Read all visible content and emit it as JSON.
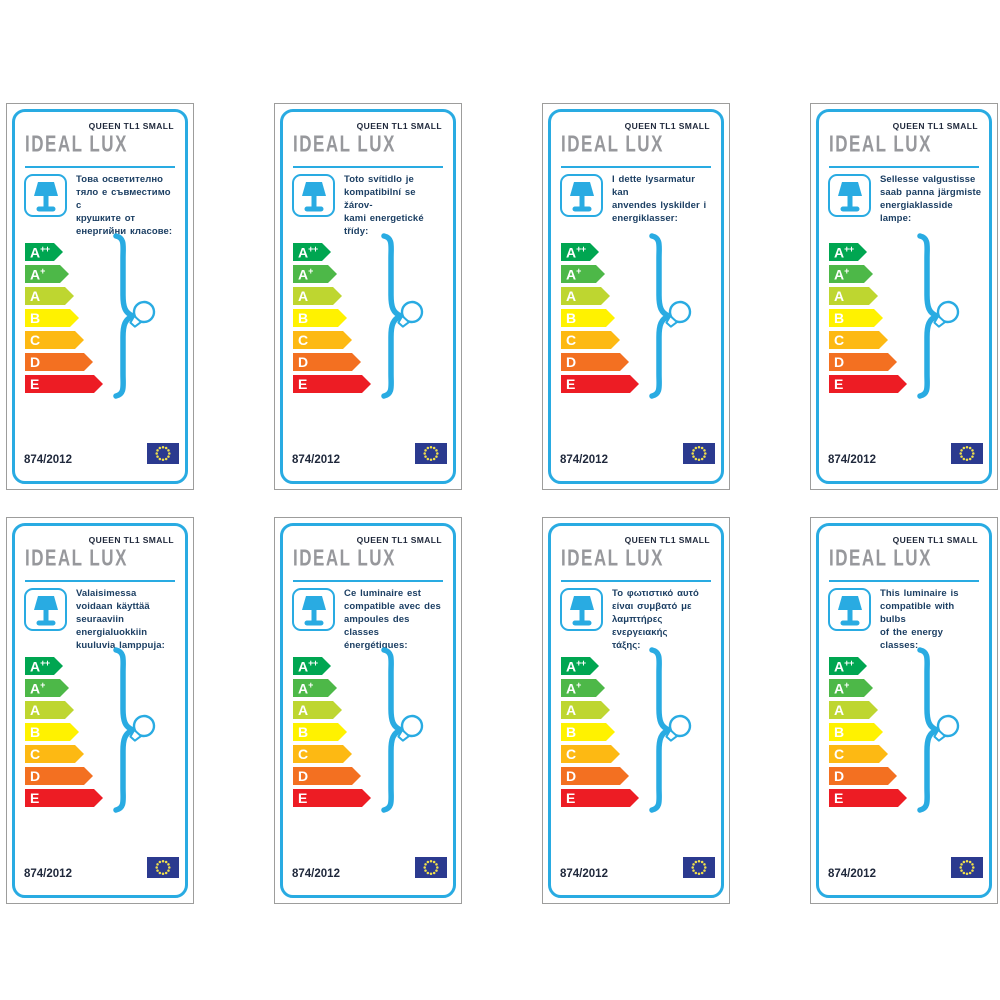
{
  "colors": {
    "accent_blue": "#29abe2",
    "text_navy": "#1c3f63",
    "heading_navy": "#20293c",
    "logo_gray": "#97989c",
    "border_gray": "#9d9d9c",
    "eu_flag_blue": "#2b3a8f",
    "eu_star_yellow": "#f2e14c",
    "arrow_text": "#ffffff"
  },
  "shared": {
    "brand": "IDEAL LUX",
    "product": "QUEEN TL1 SMALL",
    "regulation": "874/2012"
  },
  "icons": {
    "lamp": "table-lamp-icon",
    "brace": "curly-brace-icon",
    "bulb": "light-bulb-icon",
    "flag": "eu-flag-icon"
  },
  "energy_scale": {
    "classes": [
      {
        "letter": "A",
        "sup": "++",
        "color": "#00a651",
        "width": 38
      },
      {
        "letter": "A",
        "sup": "+",
        "color": "#4db848",
        "width": 44
      },
      {
        "letter": "A",
        "sup": "",
        "color": "#bed630",
        "width": 49
      },
      {
        "letter": "B",
        "sup": "",
        "color": "#fff200",
        "width": 54
      },
      {
        "letter": "C",
        "sup": "",
        "color": "#fdb913",
        "width": 59
      },
      {
        "letter": "D",
        "sup": "",
        "color": "#f37021",
        "width": 68
      },
      {
        "letter": "E",
        "sup": "",
        "color": "#ed1c24",
        "width": 78
      }
    ]
  },
  "labels": [
    {
      "description": "Това осветително\nтяло е съвместимо с\nкрушките от\nенергийни класове:"
    },
    {
      "description": "Toto svítidlo je\nkompatibilní se žárov-\nkami energetické třídy:"
    },
    {
      "description": "I dette lysarmatur kan\nanvendes lyskilder i\nenergiklasser:"
    },
    {
      "description": "Sellesse valgustisse\nsaab panna järgmiste\nenergiaklasside lampe:"
    },
    {
      "description": "Valaisimessa\nvoidaan käyttää\nseuraaviin\nenergialuokkiin\nkuuluvia lamppuja:"
    },
    {
      "description": "Ce luminaire est\ncompatible avec des\nampoules des classes\nénergétiques:"
    },
    {
      "description": "Το φωτιστικό αυτό\nείναι συμβατό με\nλαμπτήρες ενεργειακής\nτάξης:"
    },
    {
      "description": "This luminaire is\ncompatible with bulbs\nof the energy classes:"
    }
  ]
}
